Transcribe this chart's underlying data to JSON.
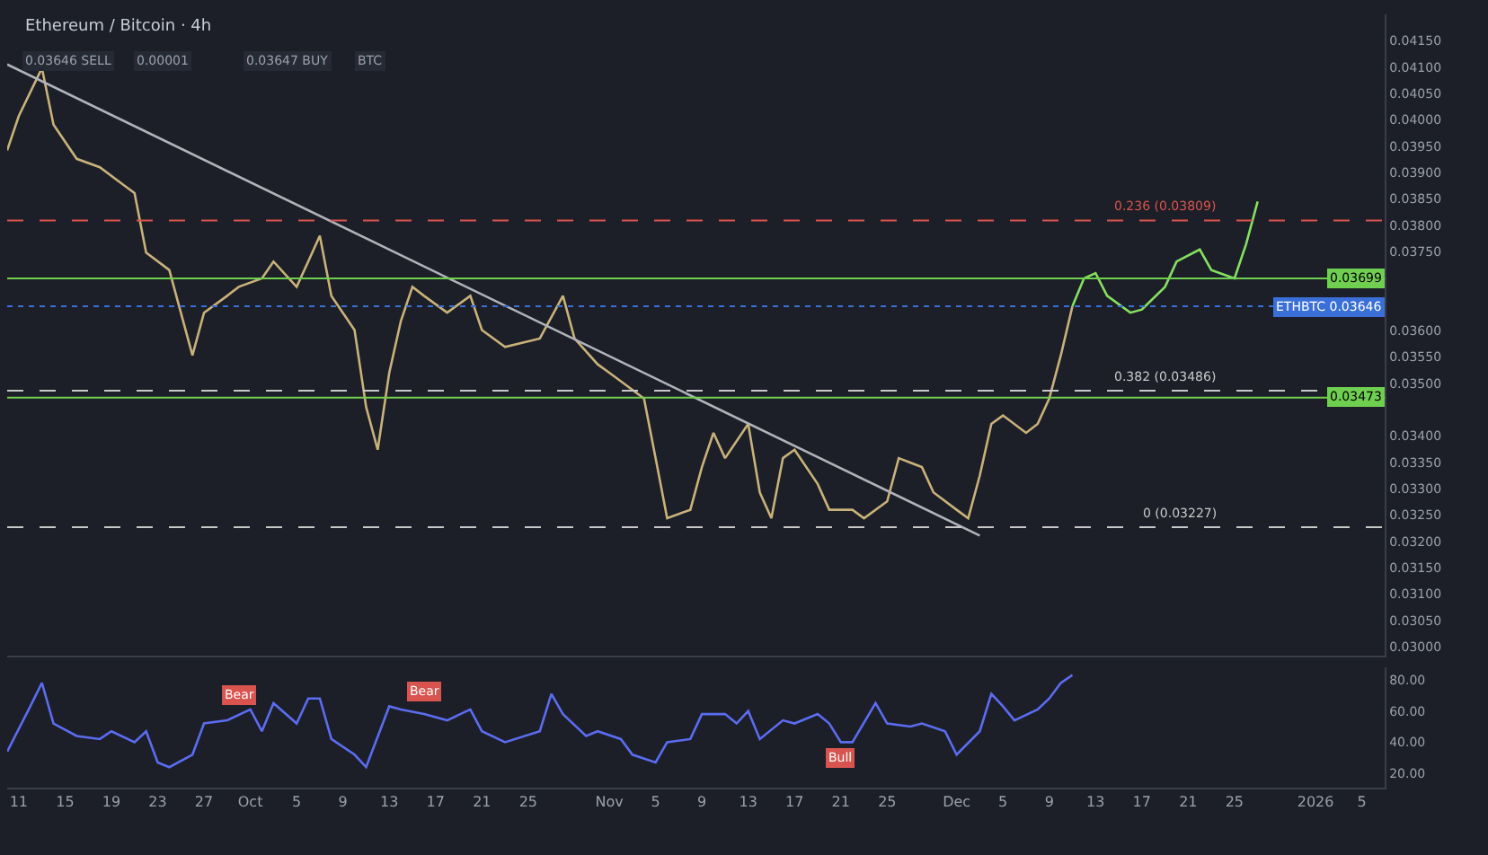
{
  "chart_data": [
    {
      "type": "line",
      "title": "Ethereum / Bitcoin · 4h",
      "annotations": [
        "0.03646 SELL",
        "0.00001",
        "0.03647 BUY",
        "BTC"
      ],
      "xlim": [
        "2025-09-10",
        "2026-01-07"
      ],
      "ylim": [
        0.02984,
        0.042
      ],
      "yticks": [
        {
          "value": 0.03,
          "label": "0.03000"
        },
        {
          "value": 0.0305,
          "label": "0.03050"
        },
        {
          "value": 0.031,
          "label": "0.03100"
        },
        {
          "value": 0.0315,
          "label": "0.03150"
        },
        {
          "value": 0.032,
          "label": "0.03200"
        },
        {
          "value": 0.0325,
          "label": "0.03250"
        },
        {
          "value": 0.033,
          "label": "0.03300"
        },
        {
          "value": 0.0335,
          "label": "0.03350"
        },
        {
          "value": 0.034,
          "label": "0.03400"
        },
        {
          "value": 0.035,
          "label": "0.03500"
        },
        {
          "value": 0.0355,
          "label": "0.03550"
        },
        {
          "value": 0.036,
          "label": "0.03600"
        },
        {
          "value": 0.0375,
          "label": "0.03750"
        },
        {
          "value": 0.038,
          "label": "0.03800"
        },
        {
          "value": 0.0385,
          "label": "0.03850"
        },
        {
          "value": 0.039,
          "label": "0.03900"
        },
        {
          "value": 0.0395,
          "label": "0.03950"
        },
        {
          "value": 0.04,
          "label": "0.04000"
        },
        {
          "value": 0.0405,
          "label": "0.04050"
        },
        {
          "value": 0.041,
          "label": "0.04100"
        },
        {
          "value": 0.0415,
          "label": "0.04150"
        }
      ],
      "tick_labels": "y",
      "grid": false,
      "marker": "none",
      "line_style": "solid",
      "series": [
        {
          "color": "#c9b27a",
          "x": [
            "2025-09-10",
            "2025-09-11",
            "2025-09-13",
            "2025-09-14",
            "2025-09-16",
            "2025-09-18",
            "2025-09-20",
            "2025-09-21",
            "2025-09-22",
            "2025-09-24",
            "2025-09-25",
            "2025-09-26",
            "2025-09-27",
            "2025-09-29",
            "2025-09-30",
            "2025-10-02",
            "2025-10-03",
            "2025-10-05",
            "2025-10-06",
            "2025-10-07",
            "2025-10-08",
            "2025-10-10",
            "2025-10-11",
            "2025-10-12",
            "2025-10-13",
            "2025-10-14",
            "2025-10-15",
            "2025-10-16",
            "2025-10-18",
            "2025-10-20",
            "2025-10-21",
            "2025-10-23",
            "2025-10-26",
            "2025-10-28",
            "2025-10-29",
            "2025-10-31",
            "2025-11-01",
            "2025-11-02",
            "2025-11-04",
            "2025-11-05",
            "2025-11-06",
            "2025-11-08",
            "2025-11-09",
            "2025-11-10",
            "2025-11-11",
            "2025-11-13",
            "2025-11-14",
            "2025-11-15",
            "2025-11-16",
            "2025-11-17",
            "2025-11-19",
            "2025-11-20",
            "2025-11-22",
            "2025-11-23",
            "2025-11-25",
            "2025-11-26",
            "2025-11-28",
            "2025-11-29",
            "2025-12-01",
            "2025-12-02",
            "2025-12-03",
            "2025-12-04",
            "2025-12-05",
            "2025-12-07",
            "2025-12-08",
            "2025-12-09",
            "2025-12-10",
            "2025-12-11"
          ],
          "values": [
            0.03942,
            0.04007,
            0.04098,
            0.03991,
            0.03926,
            0.0391,
            0.03877,
            0.03861,
            0.03748,
            0.03715,
            0.03634,
            0.03553,
            0.03634,
            0.03666,
            0.03683,
            0.03699,
            0.03731,
            0.03683,
            0.03731,
            0.0378,
            0.03666,
            0.03601,
            0.03455,
            0.03374,
            0.0352,
            0.03618,
            0.03683,
            0.03666,
            0.03634,
            0.03666,
            0.03601,
            0.03569,
            0.03585,
            0.03666,
            0.03585,
            0.03536,
            0.0352,
            0.03504,
            0.03471,
            0.03358,
            0.03244,
            0.0326,
            0.03341,
            0.03406,
            0.03358,
            0.03423,
            0.03293,
            0.03244,
            0.03358,
            0.03374,
            0.03309,
            0.0326,
            0.0326,
            0.03244,
            0.03276,
            0.03358,
            0.03341,
            0.03293,
            0.0326,
            0.03244,
            0.03325,
            0.03423,
            0.03439,
            0.03406,
            0.03423,
            0.03471,
            0.03553,
            0.03646
          ]
        },
        {
          "color": "#b0b3ba",
          "x": [
            "2025-09-10",
            "2025-12-03"
          ],
          "values": [
            0.04105,
            0.03211
          ]
        },
        {
          "color": "#86e060",
          "x": [
            "2025-12-11",
            "2025-12-12",
            "2025-12-13",
            "2025-12-14",
            "2025-12-16",
            "2025-12-17",
            "2025-12-19",
            "2025-12-20",
            "2025-12-22",
            "2025-12-23",
            "2025-12-25",
            "2025-12-26",
            "2025-12-27"
          ],
          "values": [
            0.03646,
            0.03699,
            0.03709,
            0.03666,
            0.03634,
            0.0364,
            0.03683,
            0.03731,
            0.03754,
            0.03715,
            0.03699,
            0.03764,
            0.03845
          ]
        }
      ],
      "ref_lines": [
        {
          "axis": "y",
          "value": 0.03699,
          "label": "0.03699",
          "color": "#6fcf4f",
          "line_style": "solid"
        },
        {
          "axis": "y",
          "value": 0.03473,
          "label": "0.03473",
          "color": "#6fcf4f",
          "line_style": "solid"
        },
        {
          "axis": "y",
          "value": 0.03646,
          "label": "ETHBTC 0.03646",
          "color": "#3a6fd8",
          "line_style": "dotted"
        },
        {
          "axis": "y",
          "value": 0.03809,
          "label": "0.236 (0.03809)",
          "color": "#d9534f",
          "line_style": "dashed"
        },
        {
          "axis": "y",
          "value": 0.03486,
          "label": "0.382 (0.03486)",
          "color": "#c8c8c8",
          "line_style": "dashed"
        },
        {
          "axis": "y",
          "value": 0.03227,
          "label": "0 (0.03227)",
          "color": "#c8c8c8",
          "line_style": "dashed"
        }
      ]
    },
    {
      "type": "line",
      "annotations": [
        {
          "text": "Bear",
          "x": "2025-09-30",
          "y": 70
        },
        {
          "text": "Bear",
          "x": "2025-10-16",
          "y": 72
        },
        {
          "text": "Bull",
          "x": "2025-11-21",
          "y": 30
        }
      ],
      "xlim": [
        "2025-09-10",
        "2026-01-07"
      ],
      "xticks": [
        {
          "value": "2025-09-11",
          "label": "11"
        },
        {
          "value": "2025-09-15",
          "label": "15"
        },
        {
          "value": "2025-09-19",
          "label": "19"
        },
        {
          "value": "2025-09-23",
          "label": "23"
        },
        {
          "value": "2025-09-27",
          "label": "27"
        },
        {
          "value": "2025-10-01",
          "label": "Oct"
        },
        {
          "value": "2025-10-05",
          "label": "5"
        },
        {
          "value": "2025-10-09",
          "label": "9"
        },
        {
          "value": "2025-10-13",
          "label": "13"
        },
        {
          "value": "2025-10-17",
          "label": "17"
        },
        {
          "value": "2025-10-21",
          "label": "21"
        },
        {
          "value": "2025-10-25",
          "label": "25"
        },
        {
          "value": "2025-11-01",
          "label": "Nov"
        },
        {
          "value": "2025-11-05",
          "label": "5"
        },
        {
          "value": "2025-11-09",
          "label": "9"
        },
        {
          "value": "2025-11-13",
          "label": "13"
        },
        {
          "value": "2025-11-17",
          "label": "17"
        },
        {
          "value": "2025-11-21",
          "label": "21"
        },
        {
          "value": "2025-11-25",
          "label": "25"
        },
        {
          "value": "2025-12-01",
          "label": "Dec"
        },
        {
          "value": "2025-12-05",
          "label": "5"
        },
        {
          "value": "2025-12-09",
          "label": "9"
        },
        {
          "value": "2025-12-13",
          "label": "13"
        },
        {
          "value": "2025-12-17",
          "label": "17"
        },
        {
          "value": "2025-12-21",
          "label": "21"
        },
        {
          "value": "2025-12-25",
          "label": "25"
        },
        {
          "value": "2026-01-01",
          "label": "2026"
        },
        {
          "value": "2026-01-05",
          "label": "5"
        }
      ],
      "ylim": [
        11,
        88
      ],
      "yticks": [
        {
          "value": 20,
          "label": "20.00"
        },
        {
          "value": 40,
          "label": "40.00"
        },
        {
          "value": 60,
          "label": "60.00"
        },
        {
          "value": 80,
          "label": "80.00"
        }
      ],
      "grid": false,
      "marker": "none",
      "line_style": "solid",
      "series": [
        {
          "color": "#5b6cf0",
          "x": [
            "2025-09-10",
            "2025-09-12",
            "2025-09-13",
            "2025-09-14",
            "2025-09-16",
            "2025-09-18",
            "2025-09-19",
            "2025-09-21",
            "2025-09-22",
            "2025-09-23",
            "2025-09-24",
            "2025-09-26",
            "2025-09-27",
            "2025-09-29",
            "2025-10-01",
            "2025-10-02",
            "2025-10-03",
            "2025-10-05",
            "2025-10-06",
            "2025-10-07",
            "2025-10-08",
            "2025-10-10",
            "2025-10-11",
            "2025-10-13",
            "2025-10-14",
            "2025-10-16",
            "2025-10-18",
            "2025-10-20",
            "2025-10-21",
            "2025-10-23",
            "2025-10-26",
            "2025-10-27",
            "2025-10-28",
            "2025-10-30",
            "2025-10-31",
            "2025-11-02",
            "2025-11-03",
            "2025-11-05",
            "2025-11-06",
            "2025-11-08",
            "2025-11-09",
            "2025-11-11",
            "2025-11-12",
            "2025-11-13",
            "2025-11-14",
            "2025-11-16",
            "2025-11-17",
            "2025-11-19",
            "2025-11-20",
            "2025-11-21",
            "2025-11-22",
            "2025-11-24",
            "2025-11-25",
            "2025-11-27",
            "2025-11-28",
            "2025-11-30",
            "2025-12-01",
            "2025-12-03",
            "2025-12-04",
            "2025-12-05",
            "2025-12-06",
            "2025-12-08",
            "2025-12-09",
            "2025-12-10",
            "2025-12-11"
          ],
          "values": [
            34,
            63,
            78,
            52,
            44,
            42,
            47,
            40,
            47,
            27,
            24,
            32,
            52,
            54,
            61,
            47,
            65,
            52,
            68,
            68,
            42,
            32,
            24,
            63,
            61,
            58,
            54,
            61,
            47,
            40,
            47,
            71,
            58,
            44,
            47,
            42,
            32,
            27,
            40,
            42,
            58,
            58,
            52,
            60,
            42,
            54,
            52,
            58,
            52,
            40,
            40,
            65,
            52,
            50,
            52,
            47,
            32,
            47,
            71,
            63,
            54,
            61,
            68,
            78,
            83
          ]
        }
      ]
    }
  ]
}
